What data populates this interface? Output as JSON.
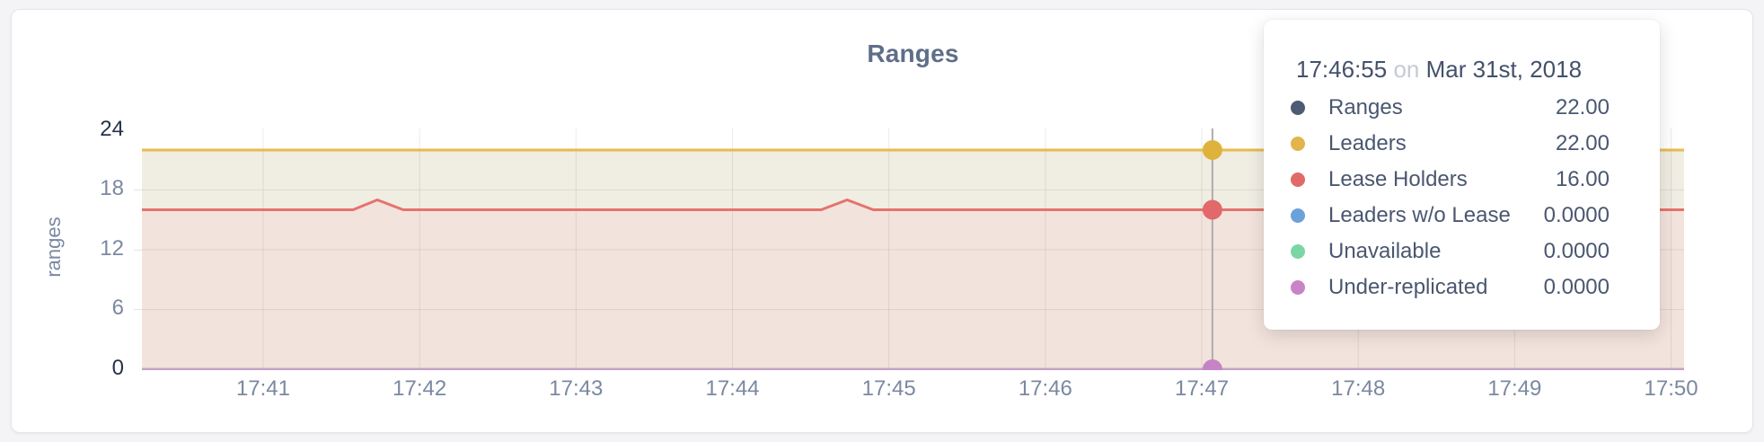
{
  "chart": {
    "title": "Ranges"
  },
  "tooltip": {
    "time": "17:46:55",
    "conjunction": "on",
    "date": "Mar 31st, 2018",
    "rows": [
      {
        "label": "Ranges",
        "value": "22.00",
        "color": "#4E5B75"
      },
      {
        "label": "Leaders",
        "value": "22.00",
        "color": "#E3B34C"
      },
      {
        "label": "Lease Holders",
        "value": "16.00",
        "color": "#E26A66"
      },
      {
        "label": "Leaders w/o Lease",
        "value": "0.0000",
        "color": "#6BA2DB"
      },
      {
        "label": "Unavailable",
        "value": "0.0000",
        "color": "#7CD6A4"
      },
      {
        "label": "Under-replicated",
        "value": "0.0000",
        "color": "#C983C7"
      }
    ]
  },
  "chart_data": {
    "type": "area",
    "title": "Ranges",
    "ylabel": "ranges",
    "ylim": [
      0,
      24
    ],
    "y_ticks": [
      24,
      18,
      12,
      6,
      0
    ],
    "y_grid_values": [
      6,
      12,
      18
    ],
    "x_ticks_minutes": [
      41,
      42,
      43,
      44,
      45,
      46,
      47,
      48,
      49,
      50
    ],
    "x_tick_labels": [
      "17:41",
      "17:42",
      "17:43",
      "17:44",
      "17:45",
      "17:46",
      "17:47",
      "17:48",
      "17:49",
      "17:50"
    ],
    "x_domain_minutes": [
      40.225,
      50.083
    ],
    "grid": true,
    "legend_position": "tooltip",
    "series": [
      {
        "name": "Ranges",
        "color": "#4E5B75",
        "width": 3,
        "fill": "none",
        "points": [
          [
            40.225,
            22
          ],
          [
            50.083,
            22
          ]
        ]
      },
      {
        "name": "Leaders",
        "color": "#E8BA4B",
        "width": 3,
        "fill": "#F0EDE3",
        "points": [
          [
            40.225,
            22
          ],
          [
            50.083,
            22
          ]
        ]
      },
      {
        "name": "Lease Holders",
        "color": "#E5736C",
        "width": 3,
        "fill": "#F3E3DD",
        "points": [
          [
            40.225,
            16
          ],
          [
            41.575,
            16
          ],
          [
            41.73,
            17
          ],
          [
            41.895,
            16
          ],
          [
            44.567,
            16
          ],
          [
            44.733,
            17
          ],
          [
            44.9,
            16
          ],
          [
            50.083,
            16
          ]
        ]
      },
      {
        "name": "Leaders w/o Lease",
        "color": "#6BA2DB",
        "width": 2.5,
        "fill": "none",
        "points": [
          [
            40.225,
            0
          ],
          [
            50.083,
            0
          ]
        ]
      },
      {
        "name": "Unavailable",
        "color": "#7CD6A4",
        "width": 2.5,
        "fill": "none",
        "points": [
          [
            40.225,
            0
          ],
          [
            50.083,
            0
          ]
        ]
      },
      {
        "name": "Under-replicated",
        "color": "#C5A1C6",
        "width": 2.5,
        "fill": "none",
        "points": [
          [
            40.225,
            0
          ],
          [
            50.083,
            0
          ]
        ]
      }
    ],
    "stroke_draw_order": [
      0,
      3,
      4,
      5,
      2,
      1
    ],
    "crosshair": {
      "minute": 47.068,
      "time_label": "17:46:55",
      "points": [
        {
          "value": 22,
          "color": "#DFB23C"
        },
        {
          "value": 16,
          "color": "#E1696A"
        },
        {
          "value": 0,
          "color": "#C584C4"
        }
      ]
    }
  }
}
